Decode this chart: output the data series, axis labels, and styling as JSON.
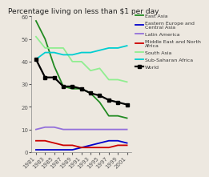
{
  "title": "Percentage living on less than $1 per day",
  "years": [
    1981,
    1983,
    1985,
    1987,
    1989,
    1991,
    1993,
    1995,
    1997,
    1999,
    2001
  ],
  "series": [
    {
      "name": "East Asia",
      "values": [
        58,
        50,
        38,
        29,
        28,
        28,
        26,
        22,
        16,
        16,
        15
      ],
      "color": "#228B22",
      "linewidth": 1.3,
      "marker": null
    },
    {
      "name": "Eastern Europe and\nCentral Asia",
      "values": [
        1,
        1,
        1,
        1,
        1,
        2,
        3,
        4,
        5,
        5,
        4
      ],
      "color": "#0000CD",
      "linewidth": 1.3,
      "marker": null
    },
    {
      "name": "Latin America",
      "values": [
        10,
        11,
        11,
        10,
        10,
        10,
        10,
        10,
        10,
        10,
        10
      ],
      "color": "#9370DB",
      "linewidth": 1.3,
      "marker": null
    },
    {
      "name": "Middle East and North\nAfrica",
      "values": [
        5,
        5,
        4,
        3,
        3,
        2,
        2,
        2,
        2,
        3,
        3
      ],
      "color": "#CC0000",
      "linewidth": 1.3,
      "marker": null
    },
    {
      "name": "South Asia",
      "values": [
        51,
        46,
        46,
        46,
        40,
        40,
        36,
        37,
        32,
        32,
        31
      ],
      "color": "#90EE90",
      "linewidth": 1.3,
      "marker": null
    },
    {
      "name": "Sub-Saharan Africa",
      "values": [
        41,
        44,
        44,
        43,
        43,
        44,
        44,
        45,
        46,
        46,
        47
      ],
      "color": "#00CED1",
      "linewidth": 1.3,
      "marker": null
    },
    {
      "name": "World",
      "values": [
        41,
        33,
        33,
        29,
        29,
        28,
        26,
        25,
        23,
        22,
        21
      ],
      "color": "#000000",
      "linewidth": 1.6,
      "marker": "s"
    }
  ],
  "ylim": [
    0,
    60
  ],
  "yticks": [
    0,
    10,
    20,
    30,
    40,
    50,
    60
  ],
  "background_color": "#ede8e0",
  "title_fontsize": 6.5,
  "tick_fontsize": 5,
  "legend_fontsize": 4.5
}
